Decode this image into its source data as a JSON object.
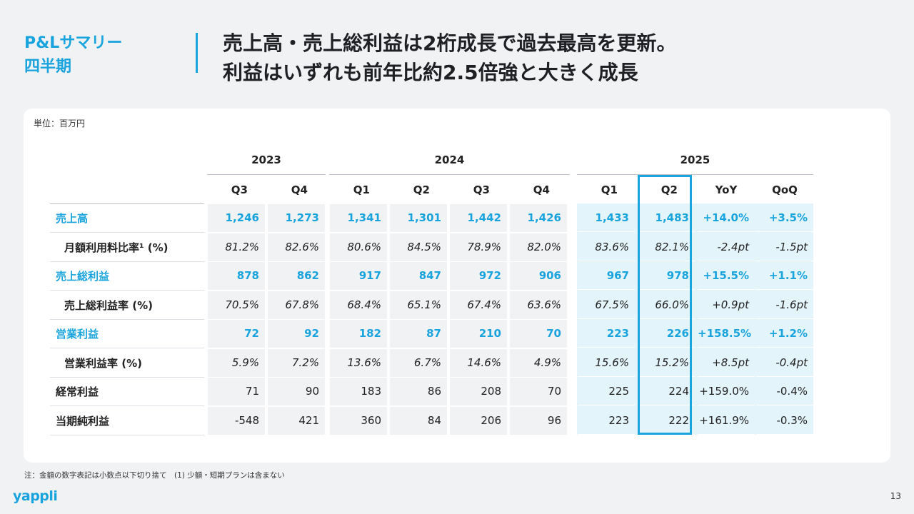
{
  "section": {
    "line1": "P&Lサマリー",
    "line2": "四半期"
  },
  "headline": {
    "line1": "売上高・売上総利益は2桁成長で過去最高を更新。",
    "line2": "利益はいずれも前年比約2.5倍強と大きく成長"
  },
  "unit_label": "単位：百万円",
  "years": [
    "2023",
    "2024",
    "2025"
  ],
  "columns": [
    "Q3",
    "Q4",
    "Q1",
    "Q2",
    "Q3",
    "Q4",
    "Q1",
    "Q2",
    "YoY",
    "QoQ"
  ],
  "rows": [
    {
      "label": "売上高",
      "values": [
        "1,246",
        "1,273",
        "1,341",
        "1,301",
        "1,442",
        "1,426",
        "1,433",
        "1,483",
        "+14.0%",
        "+3.5%"
      ]
    },
    {
      "label": "月額利用料比率¹ (%)",
      "values": [
        "81.2%",
        "82.6%",
        "80.6%",
        "84.5%",
        "78.9%",
        "82.0%",
        "83.6%",
        "82.1%",
        "-2.4pt",
        "-1.5pt"
      ]
    },
    {
      "label": "売上総利益",
      "values": [
        "878",
        "862",
        "917",
        "847",
        "972",
        "906",
        "967",
        "978",
        "+15.5%",
        "+1.1%"
      ]
    },
    {
      "label": "売上総利益率 (%)",
      "values": [
        "70.5%",
        "67.8%",
        "68.4%",
        "65.1%",
        "67.4%",
        "63.6%",
        "67.5%",
        "66.0%",
        "+0.9pt",
        "-1.6pt"
      ]
    },
    {
      "label": "営業利益",
      "values": [
        "72",
        "92",
        "182",
        "87",
        "210",
        "70",
        "223",
        "226",
        "+158.5%",
        "+1.2%"
      ]
    },
    {
      "label": "営業利益率 (%)",
      "values": [
        "5.9%",
        "7.2%",
        "13.6%",
        "6.7%",
        "14.6%",
        "4.9%",
        "15.6%",
        "15.2%",
        "+8.5pt",
        "-0.4pt"
      ]
    },
    {
      "label": "経常利益",
      "values": [
        "71",
        "90",
        "183",
        "86",
        "208",
        "70",
        "225",
        "224",
        "+159.0%",
        "-0.4%"
      ]
    },
    {
      "label": "当期純利益",
      "values": [
        "-548",
        "421",
        "360",
        "84",
        "206",
        "96",
        "223",
        "222",
        "+161.9%",
        "-0.3%"
      ]
    }
  ],
  "footnote": "注：金額の数字表記は小数点以下切り捨て　(1) 少額・短期プランは含まない",
  "logo": "yappli",
  "page_number": "13",
  "colors": {
    "accent": "#1aa4dd",
    "highlight": "#e4f4fb",
    "cell_grey": "#f1f2f4"
  }
}
